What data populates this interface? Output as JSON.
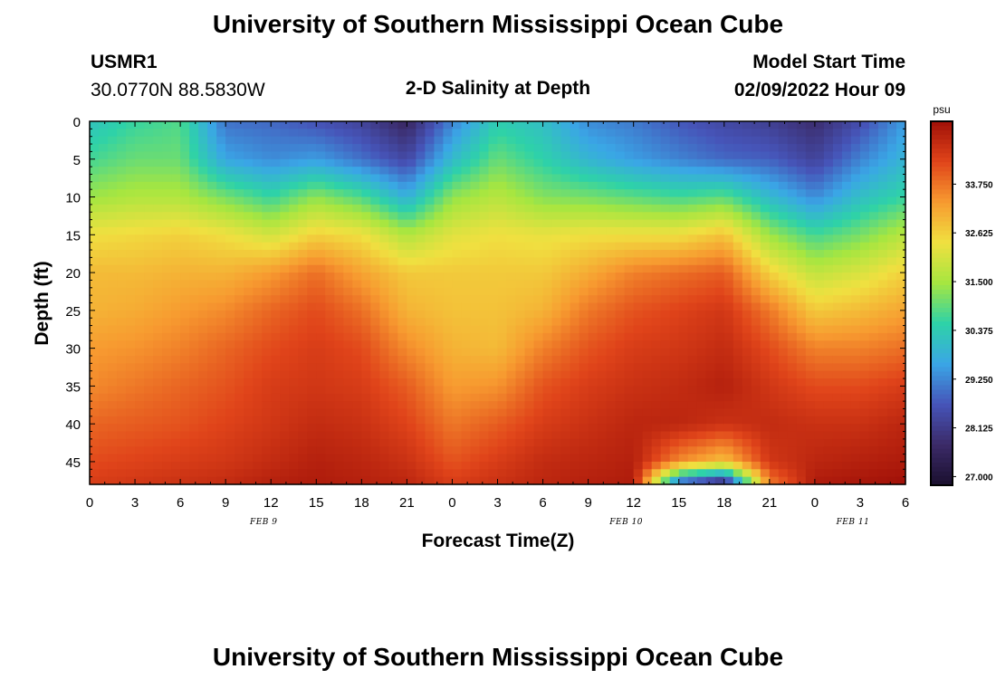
{
  "page": {
    "title_top": "University of Southern Mississippi Ocean Cube",
    "title_bottom": "University of Southern Mississippi Ocean Cube",
    "station_id": "USMR1",
    "station_coords": "30.0770N  88.5830W",
    "plot_title": "2-D Salinity at Depth",
    "model_start_label": "Model Start Time",
    "model_start_value": "02/09/2022 Hour 09"
  },
  "colors": {
    "scale": [
      "#1a0f2e",
      "#3b2a68",
      "#4654b8",
      "#3aa6e6",
      "#2ed2a8",
      "#a6e640",
      "#f0e040",
      "#f79a30",
      "#e0441a",
      "#a01008"
    ]
  },
  "chart_data": {
    "type": "heatmap",
    "title": "2-D Salinity at Depth",
    "xlabel": "Forecast Time(Z)",
    "ylabel": "Depth (ft)",
    "x_ticks": [
      "0",
      "3",
      "6",
      "9",
      "12",
      "15",
      "18",
      "21",
      "0",
      "3",
      "6",
      "9",
      "12",
      "15",
      "18",
      "21",
      "0",
      "3",
      "6"
    ],
    "x_range_hours": [
      0,
      54
    ],
    "date_labels": [
      {
        "label": "FEB 9",
        "hour": 12
      },
      {
        "label": "FEB 10",
        "hour": 36
      },
      {
        "label": "FEB 11",
        "hour": 51
      }
    ],
    "y_ticks": [
      "0",
      "5",
      "10",
      "15",
      "20",
      "25",
      "30",
      "35",
      "40",
      "45"
    ],
    "y_range_ft": [
      0,
      48
    ],
    "colorbar": {
      "unit": "psu",
      "min": 26.8,
      "max": 35.2,
      "labels": [
        "33.750",
        "32.625",
        "31.500",
        "30.375",
        "29.250",
        "28.125",
        "27.000"
      ],
      "label_values": [
        33.75,
        32.625,
        31.5,
        30.375,
        29.25,
        28.125,
        27.0
      ]
    },
    "profile_hours": [
      0,
      3,
      6,
      9,
      12,
      15,
      18,
      21,
      24,
      27,
      30,
      33,
      36,
      39,
      42,
      45,
      48,
      51,
      54
    ],
    "profile_depths_ft": [
      0,
      5,
      10,
      15,
      20,
      25,
      30,
      35,
      40,
      45,
      48
    ],
    "salinity_psu": [
      [
        30.2,
        30.7,
        31.4,
        32.4,
        32.9,
        33.0,
        33.3,
        33.5,
        33.9,
        34.2,
        34.4
      ],
      [
        30.6,
        31.0,
        31.6,
        32.5,
        32.9,
        33.1,
        33.4,
        33.7,
        34.0,
        34.3,
        34.5
      ],
      [
        30.8,
        31.0,
        31.6,
        32.6,
        33.0,
        33.3,
        33.6,
        33.9,
        34.1,
        34.4,
        34.6
      ],
      [
        29.0,
        29.6,
        31.1,
        32.4,
        33.0,
        33.5,
        33.9,
        34.1,
        34.3,
        34.5,
        34.7
      ],
      [
        28.9,
        29.3,
        30.6,
        32.0,
        33.3,
        33.9,
        34.2,
        34.4,
        34.5,
        34.7,
        34.9
      ],
      [
        28.6,
        29.5,
        31.3,
        32.6,
        33.8,
        34.2,
        34.4,
        34.5,
        34.7,
        34.9,
        35.0
      ],
      [
        28.3,
        29.0,
        30.8,
        32.4,
        33.2,
        33.8,
        34.2,
        34.4,
        34.6,
        34.8,
        34.9
      ],
      [
        27.6,
        28.4,
        29.8,
        31.6,
        32.7,
        33.0,
        33.5,
        34.0,
        34.3,
        34.6,
        34.8
      ],
      [
        29.2,
        30.0,
        31.3,
        32.2,
        32.7,
        32.8,
        33.0,
        33.3,
        33.7,
        34.1,
        34.4
      ],
      [
        30.4,
        31.0,
        31.7,
        32.4,
        32.7,
        32.8,
        32.9,
        33.4,
        34.0,
        34.4,
        34.6
      ],
      [
        30.1,
        30.5,
        31.2,
        32.3,
        32.7,
        33.0,
        33.6,
        34.1,
        34.4,
        34.7,
        34.8
      ],
      [
        29.3,
        29.9,
        31.1,
        32.4,
        33.1,
        33.7,
        34.1,
        34.4,
        34.6,
        34.8,
        34.9
      ],
      [
        29.1,
        29.5,
        30.9,
        32.4,
        33.6,
        34.1,
        34.4,
        34.6,
        34.8,
        34.9,
        35.0
      ],
      [
        28.7,
        29.2,
        30.7,
        32.4,
        33.8,
        34.3,
        34.5,
        34.7,
        34.8,
        33.5,
        28.5
      ],
      [
        28.4,
        28.9,
        30.9,
        32.8,
        34.0,
        34.5,
        34.7,
        34.9,
        34.6,
        32.8,
        27.3
      ],
      [
        28.2,
        28.8,
        30.0,
        31.4,
        32.6,
        33.7,
        34.2,
        34.5,
        34.7,
        34.5,
        33.6
      ],
      [
        27.8,
        28.3,
        29.3,
        30.7,
        31.8,
        32.7,
        33.6,
        34.2,
        34.6,
        34.8,
        35.0
      ],
      [
        28.5,
        29.2,
        30.1,
        31.1,
        32.1,
        32.9,
        33.6,
        34.2,
        34.6,
        34.9,
        35.1
      ],
      [
        29.5,
        29.9,
        30.6,
        31.7,
        32.6,
        33.2,
        33.8,
        34.4,
        34.8,
        35.0,
        35.2
      ]
    ]
  }
}
